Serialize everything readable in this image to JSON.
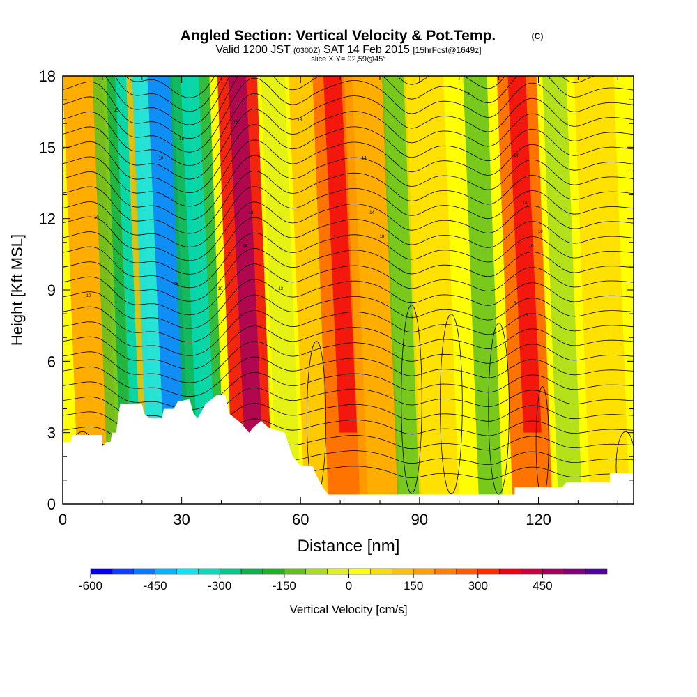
{
  "chart_data": {
    "type": "heatmap",
    "title": "Angled Section: Vertical Velocity & Pot.Temp.",
    "title_unit": "(C)",
    "subtitle": {
      "valid": "Valid 1200 JST",
      "utc": "(0300Z)",
      "date": "SAT 14 Feb 2015",
      "forecast": "[15hrFcst@1649z]",
      "slice": "slice X,Y= 92,59@45°"
    },
    "xlabel": "Distance [nm]",
    "ylabel": "Height [Kft MSL]",
    "xlim": [
      0,
      144
    ],
    "ylim": [
      0,
      18
    ],
    "x_ticks": [
      0,
      30,
      60,
      90,
      120
    ],
    "y_ticks": [
      0,
      3,
      6,
      9,
      12,
      15,
      18
    ],
    "colorbar": {
      "label": "Vertical Velocity [cm/s]",
      "tick_labels": [
        "-600",
        "-450",
        "-300",
        "-150",
        "0",
        "150",
        "300",
        "450"
      ],
      "tick_values": [
        -600,
        -450,
        -300,
        -150,
        0,
        150,
        300,
        450
      ],
      "bins": [
        -600,
        -550,
        -500,
        -450,
        -400,
        -350,
        -300,
        -250,
        -200,
        -150,
        -100,
        -50,
        0,
        50,
        100,
        150,
        200,
        250,
        300,
        350,
        400,
        450,
        500,
        550
      ],
      "colors": [
        "#0000ee",
        "#0a40ff",
        "#0a78ff",
        "#00b4ff",
        "#00e8f8",
        "#00dcc0",
        "#00c88c",
        "#10b048",
        "#20b024",
        "#60c020",
        "#a8dc20",
        "#e0f018",
        "#ffff00",
        "#ffdc00",
        "#ffc000",
        "#ffa000",
        "#ff8000",
        "#ff5a00",
        "#ff2a00",
        "#f00010",
        "#c80040",
        "#a00060",
        "#7c0080",
        "#58009c"
      ]
    },
    "terrain_profile_kft": [
      [
        0,
        2.6
      ],
      [
        2,
        2.6
      ],
      [
        2.5,
        2.9
      ],
      [
        10,
        2.9
      ],
      [
        10,
        2.4
      ],
      [
        11,
        2.6
      ],
      [
        12,
        2.6
      ],
      [
        12.5,
        3
      ],
      [
        13.5,
        3
      ],
      [
        14,
        3.7
      ],
      [
        14.5,
        4.2
      ],
      [
        20,
        4.2
      ],
      [
        20.5,
        3.8
      ],
      [
        22,
        3.6
      ],
      [
        25,
        3.6
      ],
      [
        25.5,
        4
      ],
      [
        28,
        4
      ],
      [
        29,
        4.3
      ],
      [
        32,
        4.4
      ],
      [
        33,
        3.8
      ],
      [
        34,
        3.6
      ],
      [
        36,
        4.2
      ],
      [
        39,
        4.6
      ],
      [
        41,
        4.6
      ],
      [
        42,
        3.8
      ],
      [
        45,
        3.4
      ],
      [
        47,
        3.0
      ],
      [
        48,
        3.2
      ],
      [
        50,
        3.5
      ],
      [
        52,
        3.2
      ],
      [
        56,
        3.0
      ],
      [
        58,
        2.0
      ],
      [
        60,
        1.6
      ],
      [
        63,
        1.6
      ],
      [
        64,
        1.2
      ],
      [
        66,
        0.6
      ],
      [
        67,
        0.4
      ],
      [
        90,
        0.4
      ],
      [
        114,
        0.4
      ],
      [
        114,
        0.7
      ],
      [
        120,
        0.7
      ],
      [
        126,
        0.7
      ],
      [
        127,
        0.9
      ],
      [
        138,
        0.9
      ],
      [
        138,
        1.3
      ],
      [
        144,
        1.3
      ]
    ],
    "velocity_bands": [
      {
        "x": 9,
        "value": 150,
        "halfwidth": 5
      },
      {
        "x": 14.5,
        "value": -150,
        "halfwidth": 3
      },
      {
        "x": 19,
        "value": -225,
        "halfwidth": 4
      },
      {
        "x": 23,
        "value": 100,
        "halfwidth": 3
      },
      {
        "x": 28.5,
        "value": -400,
        "halfwidth": 7
      },
      {
        "x": 36,
        "value": -250,
        "halfwidth": 5
      },
      {
        "x": 48,
        "value": 350,
        "halfwidth": 5
      },
      {
        "x": 57,
        "value": -50,
        "halfwidth": 3
      },
      {
        "x": 64,
        "value": 100,
        "halfwidth": 3
      },
      {
        "x": 72,
        "value": 250,
        "halfwidth": 5
      },
      {
        "x": 80,
        "value": 150,
        "halfwidth": 5
      },
      {
        "x": 87.5,
        "value": -150,
        "halfwidth": 3
      },
      {
        "x": 95,
        "value": 75,
        "halfwidth": 5
      },
      {
        "x": 108,
        "value": -150,
        "halfwidth": 3
      },
      {
        "x": 118.5,
        "value": 280,
        "halfwidth": 5
      },
      {
        "x": 128,
        "value": -100,
        "halfwidth": 3
      },
      {
        "x": 138,
        "value": 50,
        "halfwidth": 5
      }
    ],
    "isentrope_labels": [
      {
        "x": 6.5,
        "y": 8.7,
        "text": "10"
      },
      {
        "x": 8.5,
        "y": 12.0,
        "text": "18"
      },
      {
        "x": 13.5,
        "y": 16.5,
        "text": "15"
      },
      {
        "x": 24.8,
        "y": 14.5,
        "text": "18"
      },
      {
        "x": 28.6,
        "y": 9.2,
        "text": "16"
      },
      {
        "x": 30,
        "y": 15.3,
        "text": "15"
      },
      {
        "x": 39.7,
        "y": 9.0,
        "text": "10"
      },
      {
        "x": 43.6,
        "y": 16.0,
        "text": "16"
      },
      {
        "x": 46,
        "y": 10.8,
        "text": "18"
      },
      {
        "x": 47.5,
        "y": 12.2,
        "text": "18"
      },
      {
        "x": 55.0,
        "y": 9.0,
        "text": "13"
      },
      {
        "x": 59.8,
        "y": 16.1,
        "text": "18"
      },
      {
        "x": 76,
        "y": 14.5,
        "text": "14"
      },
      {
        "x": 78,
        "y": 12.2,
        "text": "14"
      },
      {
        "x": 80.5,
        "y": 11.2,
        "text": "18"
      },
      {
        "x": 85,
        "y": 9.8,
        "text": "6"
      },
      {
        "x": 88,
        "y": 7.8,
        "text": "4"
      },
      {
        "x": 102,
        "y": 17.2,
        "text": "15"
      },
      {
        "x": 114.3,
        "y": 14.6,
        "text": "14"
      },
      {
        "x": 116.6,
        "y": 12.6,
        "text": "14"
      },
      {
        "x": 118.2,
        "y": 10.8,
        "text": "10"
      },
      {
        "x": 120.5,
        "y": 11.4,
        "text": "18"
      },
      {
        "x": 114.0,
        "y": 8.4,
        "text": "8"
      },
      {
        "x": 117.0,
        "y": 7.9,
        "text": "8"
      }
    ]
  }
}
